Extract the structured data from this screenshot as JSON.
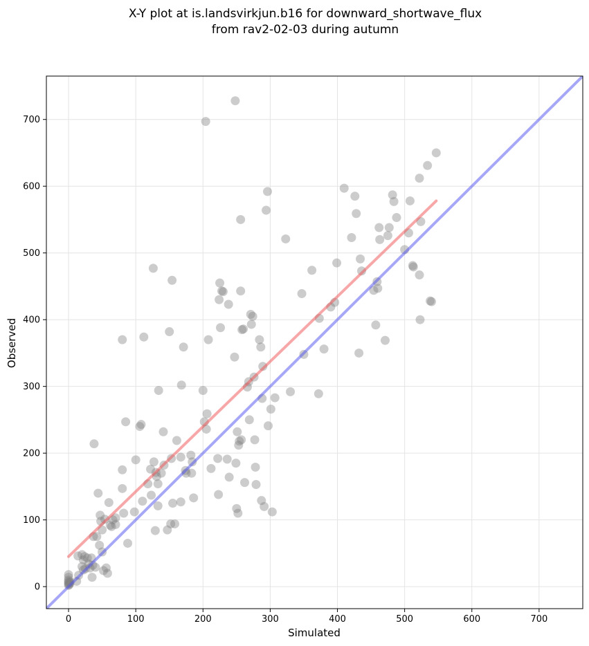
{
  "chart_data": {
    "type": "scatter",
    "title": "X-Y plot at is.landsvirkjun.b16 for downward_shortwave_flux",
    "subtitle": "from rav2-02-03 during autumn",
    "xlabel": "Simulated",
    "ylabel": "Observed",
    "xlim": [
      -33,
      765
    ],
    "ylim": [
      -33,
      765
    ],
    "xticks": [
      0,
      100,
      200,
      300,
      400,
      500,
      600,
      700
    ],
    "yticks": [
      0,
      100,
      200,
      300,
      400,
      500,
      600,
      700
    ],
    "grid": true,
    "colors": {
      "points": "#808080",
      "fit_line": "#f05050",
      "identity_line": "#5050f0"
    },
    "series": [
      {
        "kind": "points",
        "points": [
          [
            0,
            2
          ],
          [
            0,
            4
          ],
          [
            0,
            6
          ],
          [
            0,
            8
          ],
          [
            0,
            10
          ],
          [
            0,
            14
          ],
          [
            0,
            18
          ],
          [
            1,
            3
          ],
          [
            2,
            5
          ],
          [
            2,
            7
          ],
          [
            12,
            8
          ],
          [
            15,
            17
          ],
          [
            14,
            46
          ],
          [
            20,
            30
          ],
          [
            20,
            48
          ],
          [
            22,
            40
          ],
          [
            22,
            25
          ],
          [
            24,
            45
          ],
          [
            25,
            27
          ],
          [
            28,
            43
          ],
          [
            30,
            34
          ],
          [
            32,
            28
          ],
          [
            34,
            43
          ],
          [
            35,
            14
          ],
          [
            36,
            32
          ],
          [
            37,
            75
          ],
          [
            38,
            214
          ],
          [
            40,
            29
          ],
          [
            42,
            75
          ],
          [
            44,
            140
          ],
          [
            46,
            62
          ],
          [
            47,
            107
          ],
          [
            48,
            98
          ],
          [
            50,
            52
          ],
          [
            50,
            85
          ],
          [
            52,
            24
          ],
          [
            54,
            101
          ],
          [
            56,
            28
          ],
          [
            58,
            20
          ],
          [
            60,
            126
          ],
          [
            62,
            92
          ],
          [
            64,
            90
          ],
          [
            66,
            100
          ],
          [
            70,
            103
          ],
          [
            70,
            93
          ],
          [
            80,
            147
          ],
          [
            80,
            370
          ],
          [
            80,
            175
          ],
          [
            82,
            110
          ],
          [
            85,
            247
          ],
          [
            88,
            65
          ],
          [
            98,
            112
          ],
          [
            100,
            190
          ],
          [
            106,
            240
          ],
          [
            108,
            243
          ],
          [
            110,
            128
          ],
          [
            112,
            374
          ],
          [
            118,
            154
          ],
          [
            122,
            176
          ],
          [
            123,
            137
          ],
          [
            126,
            477
          ],
          [
            127,
            187
          ],
          [
            129,
            84
          ],
          [
            130,
            171
          ],
          [
            131,
            165
          ],
          [
            133,
            154
          ],
          [
            133,
            121
          ],
          [
            134,
            294
          ],
          [
            138,
            170
          ],
          [
            141,
            232
          ],
          [
            142,
            182
          ],
          [
            147,
            85
          ],
          [
            150,
            382
          ],
          [
            152,
            94
          ],
          [
            153,
            192
          ],
          [
            154,
            459
          ],
          [
            155,
            125
          ],
          [
            158,
            94
          ],
          [
            161,
            219
          ],
          [
            167,
            194
          ],
          [
            167,
            127
          ],
          [
            168,
            302
          ],
          [
            171,
            359
          ],
          [
            174,
            174
          ],
          [
            175,
            170
          ],
          [
            182,
            197
          ],
          [
            183,
            170
          ],
          [
            184,
            187
          ],
          [
            186,
            133
          ],
          [
            200,
            294
          ],
          [
            202,
            247
          ],
          [
            204,
            697
          ],
          [
            205,
            236
          ],
          [
            206,
            259
          ],
          [
            208,
            370
          ],
          [
            212,
            177
          ],
          [
            222,
            192
          ],
          [
            223,
            138
          ],
          [
            224,
            430
          ],
          [
            225,
            455
          ],
          [
            226,
            388
          ],
          [
            228,
            443
          ],
          [
            230,
            442
          ],
          [
            236,
            191
          ],
          [
            238,
            423
          ],
          [
            239,
            164
          ],
          [
            247,
            344
          ],
          [
            248,
            728
          ],
          [
            249,
            185
          ],
          [
            250,
            117
          ],
          [
            251,
            232
          ],
          [
            252,
            110
          ],
          [
            253,
            212
          ],
          [
            254,
            218
          ],
          [
            256,
            550
          ],
          [
            256,
            443
          ],
          [
            257,
            220
          ],
          [
            258,
            385
          ],
          [
            260,
            386
          ],
          [
            262,
            156
          ],
          [
            266,
            299
          ],
          [
            268,
            307
          ],
          [
            269,
            250
          ],
          [
            271,
            408
          ],
          [
            272,
            393
          ],
          [
            274,
            405
          ],
          [
            276,
            314
          ],
          [
            277,
            220
          ],
          [
            278,
            179
          ],
          [
            279,
            153
          ],
          [
            284,
            370
          ],
          [
            286,
            359
          ],
          [
            287,
            129
          ],
          [
            288,
            282
          ],
          [
            289,
            330
          ],
          [
            291,
            120
          ],
          [
            294,
            564
          ],
          [
            296,
            592
          ],
          [
            297,
            241
          ],
          [
            301,
            266
          ],
          [
            303,
            112
          ],
          [
            307,
            283
          ],
          [
            323,
            521
          ],
          [
            330,
            292
          ],
          [
            347,
            439
          ],
          [
            350,
            348
          ],
          [
            362,
            474
          ],
          [
            372,
            289
          ],
          [
            373,
            402
          ],
          [
            380,
            356
          ],
          [
            390,
            419
          ],
          [
            396,
            426
          ],
          [
            399,
            485
          ],
          [
            410,
            597
          ],
          [
            421,
            523
          ],
          [
            426,
            585
          ],
          [
            428,
            559
          ],
          [
            432,
            350
          ],
          [
            434,
            491
          ],
          [
            436,
            473
          ],
          [
            454,
            444
          ],
          [
            457,
            392
          ],
          [
            459,
            457
          ],
          [
            460,
            447
          ],
          [
            462,
            538
          ],
          [
            463,
            520
          ],
          [
            471,
            369
          ],
          [
            475,
            526
          ],
          [
            477,
            538
          ],
          [
            482,
            587
          ],
          [
            484,
            577
          ],
          [
            488,
            553
          ],
          [
            500,
            505
          ],
          [
            506,
            530
          ],
          [
            508,
            578
          ],
          [
            512,
            481
          ],
          [
            513,
            479
          ],
          [
            522,
            612
          ],
          [
            522,
            467
          ],
          [
            523,
            400
          ],
          [
            524,
            547
          ],
          [
            534,
            631
          ],
          [
            538,
            428
          ],
          [
            540,
            427
          ],
          [
            547,
            650
          ]
        ]
      },
      {
        "kind": "fit_line",
        "from": [
          0,
          45
        ],
        "to": [
          547,
          578
        ]
      },
      {
        "kind": "identity_line",
        "from": [
          -33,
          -33
        ],
        "to": [
          765,
          765
        ]
      }
    ]
  }
}
